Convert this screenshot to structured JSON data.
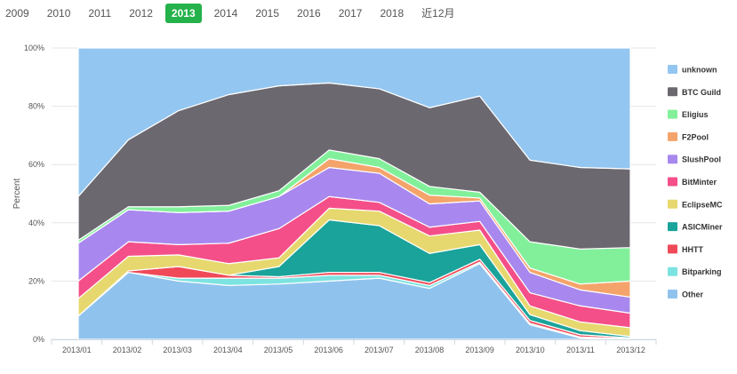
{
  "year_tabs": {
    "items": [
      "2009",
      "2010",
      "2011",
      "2012",
      "2013",
      "2014",
      "2015",
      "2016",
      "2017",
      "2018",
      "近12月"
    ],
    "active": "2013"
  },
  "chart_data": {
    "type": "area",
    "stacked": true,
    "ylabel": "Percent",
    "xlabel": "",
    "title": "",
    "ylim": [
      0,
      100
    ],
    "y_ticks": [
      "0%",
      "20%",
      "40%",
      "60%",
      "80%",
      "100%"
    ],
    "grid": true,
    "legend_position": "right",
    "categories": [
      "2013/01",
      "2013/02",
      "2013/03",
      "2013/04",
      "2013/05",
      "2013/06",
      "2013/07",
      "2013/08",
      "2013/09",
      "2013/10",
      "2013/11",
      "2013/12"
    ],
    "series": [
      {
        "name": "Other",
        "color": "#8fc3ee",
        "values": [
          8,
          23,
          20,
          18.5,
          19,
          20,
          21,
          17.5,
          26,
          5,
          0.5,
          0
        ]
      },
      {
        "name": "Bitparking",
        "color": "#7ce3e0",
        "values": [
          0,
          0,
          1,
          2.5,
          2,
          2,
          1,
          1,
          0.5,
          0.5,
          0.3,
          0.2
        ]
      },
      {
        "name": "HHTT",
        "color": "#f04a58",
        "values": [
          0,
          0.5,
          4,
          1,
          0.5,
          1,
          1,
          1,
          1,
          1,
          0.8,
          0.3
        ]
      },
      {
        "name": "ASICMiner",
        "color": "#1aa39a",
        "values": [
          0,
          0,
          0,
          0,
          3.5,
          18,
          16,
          10,
          5,
          2,
          1.4,
          0.5
        ]
      },
      {
        "name": "EclipseMC",
        "color": "#e6d86e",
        "values": [
          6,
          5,
          4,
          4,
          3,
          4,
          5,
          6,
          5,
          3,
          3,
          3
        ]
      },
      {
        "name": "BitMinter",
        "color": "#f44f89",
        "values": [
          6,
          5,
          3.5,
          7,
          10,
          4,
          3,
          3,
          3,
          4.5,
          5.5,
          5
        ]
      },
      {
        "name": "SlushPool",
        "color": "#a888ee",
        "values": [
          13,
          11,
          11,
          11,
          11,
          10,
          10,
          8,
          7,
          7,
          5.5,
          5.5
        ]
      },
      {
        "name": "F2Pool",
        "color": "#f4a46a",
        "values": [
          0,
          0,
          0,
          0,
          0,
          3,
          2,
          3,
          1,
          1.5,
          2,
          5.5
        ]
      },
      {
        "name": "Eligius",
        "color": "#82f09a",
        "values": [
          1,
          1,
          2,
          2,
          2,
          3,
          3,
          3,
          2,
          9,
          12,
          11.5
        ]
      },
      {
        "name": "BTC Guild",
        "color": "#6b6870",
        "values": [
          15,
          23,
          33,
          38,
          36,
          23,
          24,
          27,
          33,
          28,
          28,
          27
        ]
      },
      {
        "name": "unknown",
        "color": "#93c6f0",
        "values": [
          51,
          31.5,
          21.5,
          16,
          13,
          12,
          14,
          20.5,
          16.5,
          38.5,
          41,
          41.5
        ]
      }
    ],
    "legend_order": [
      "unknown",
      "BTC Guild",
      "Eligius",
      "F2Pool",
      "SlushPool",
      "BitMinter",
      "EclipseMC",
      "ASICMiner",
      "HHTT",
      "Bitparking",
      "Other"
    ]
  }
}
